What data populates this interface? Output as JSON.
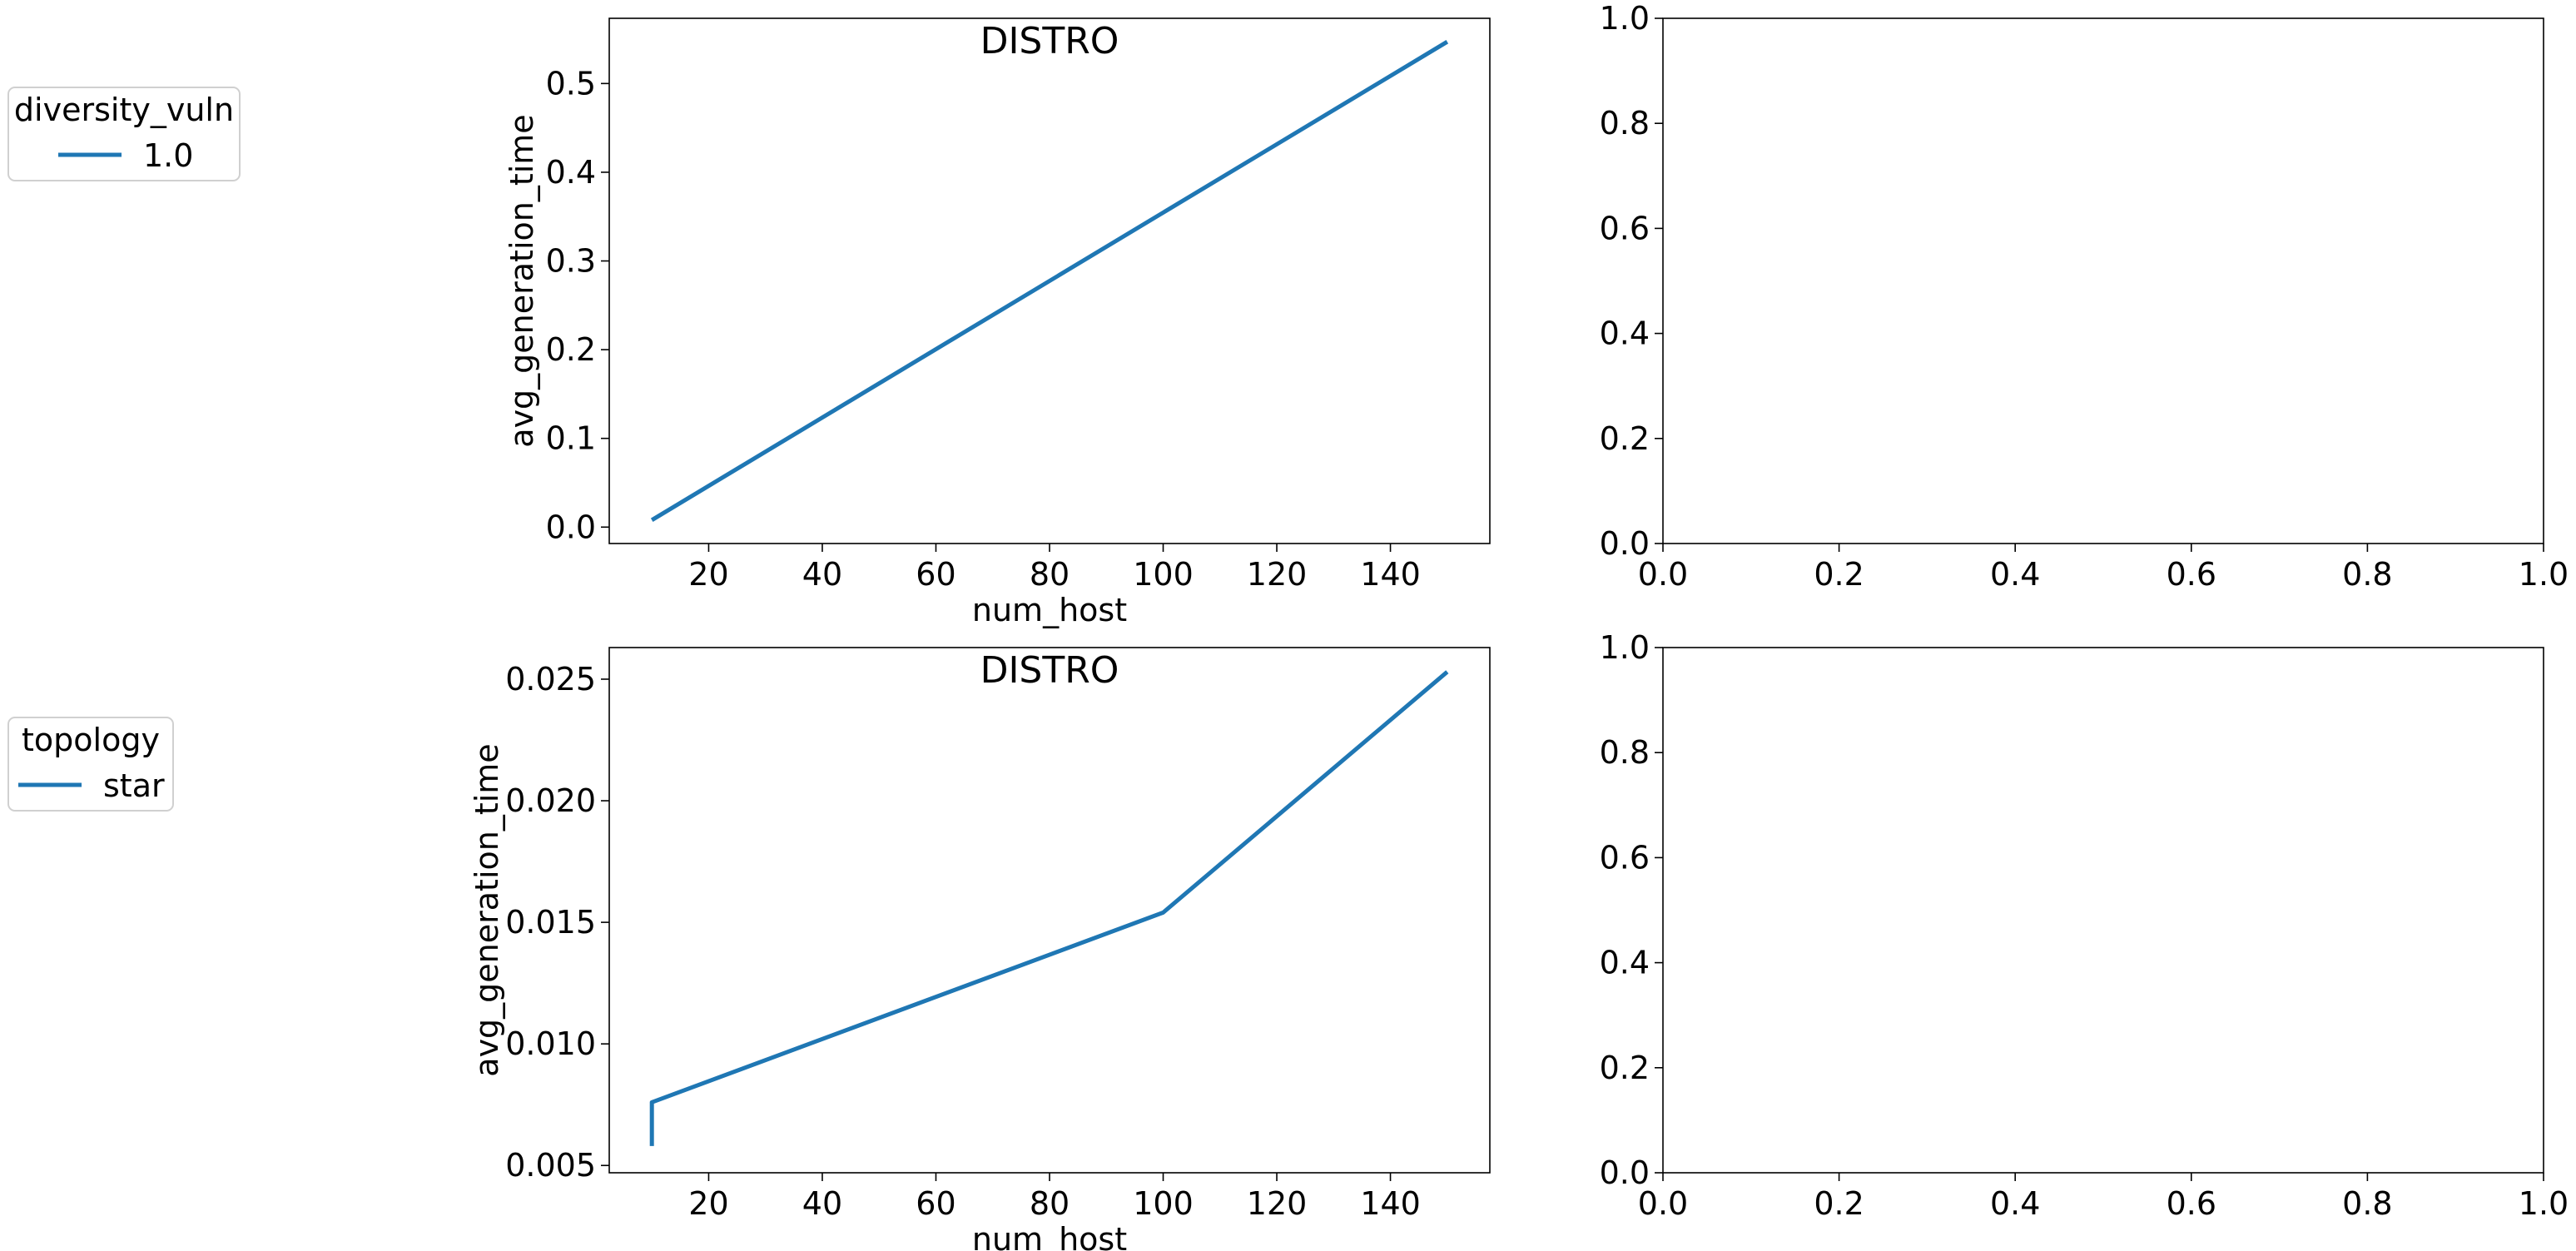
{
  "colors": {
    "series": "#1f77b4",
    "axis": "#000000",
    "legend_border": "#d0d0d0"
  },
  "legends": [
    {
      "title": "diversity_vuln",
      "entries": [
        "1.0"
      ]
    },
    {
      "title": "topology",
      "entries": [
        "star"
      ]
    }
  ],
  "chart_data": [
    {
      "type": "line",
      "title": "DISTRO",
      "xlabel": "num_host",
      "ylabel": "avg_generation_time",
      "xlim": [
        2.5,
        157.5
      ],
      "ylim": [
        -0.0185,
        0.5735
      ],
      "xticks": [
        20,
        40,
        60,
        80,
        100,
        120,
        140
      ],
      "xtick_labels": [
        "20",
        "40",
        "60",
        "80",
        "100",
        "120",
        "140"
      ],
      "yticks": [
        0.0,
        0.1,
        0.2,
        0.3,
        0.4,
        0.5
      ],
      "ytick_labels": [
        "0.0",
        "0.1",
        "0.2",
        "0.3",
        "0.4",
        "0.5"
      ],
      "series": [
        {
          "name": "1.0",
          "x": [
            10,
            150
          ],
          "y": [
            0.008,
            0.547
          ]
        }
      ]
    },
    {
      "type": "line",
      "title": "",
      "xlabel": "",
      "ylabel": "",
      "xlim": [
        0,
        1
      ],
      "ylim": [
        0,
        1
      ],
      "xticks": [
        0.0,
        0.2,
        0.4,
        0.6,
        0.8,
        1.0
      ],
      "xtick_labels": [
        "0.0",
        "0.2",
        "0.4",
        "0.6",
        "0.8",
        "1.0"
      ],
      "yticks": [
        0.0,
        0.2,
        0.4,
        0.6,
        0.8,
        1.0
      ],
      "ytick_labels": [
        "0.0",
        "0.2",
        "0.4",
        "0.6",
        "0.8",
        "1.0"
      ],
      "series": []
    },
    {
      "type": "line",
      "title": "DISTRO",
      "xlabel": "num_host",
      "ylabel": "avg_generation_time",
      "xlim": [
        2.5,
        157.5
      ],
      "ylim": [
        0.0047,
        0.0263
      ],
      "xticks": [
        20,
        40,
        60,
        80,
        100,
        120,
        140
      ],
      "xtick_labels": [
        "20",
        "40",
        "60",
        "80",
        "100",
        "120",
        "140"
      ],
      "yticks": [
        0.005,
        0.01,
        0.015,
        0.02,
        0.025
      ],
      "ytick_labels": [
        "0.005",
        "0.010",
        "0.015",
        "0.020",
        "0.025"
      ],
      "series": [
        {
          "name": "star",
          "x": [
            10,
            10,
            100,
            150
          ],
          "y": [
            0.0058,
            0.0076,
            0.0154,
            0.0253
          ]
        }
      ]
    },
    {
      "type": "line",
      "title": "",
      "xlabel": "",
      "ylabel": "",
      "xlim": [
        0,
        1
      ],
      "ylim": [
        0,
        1
      ],
      "xticks": [
        0.0,
        0.2,
        0.4,
        0.6,
        0.8,
        1.0
      ],
      "xtick_labels": [
        "0.0",
        "0.2",
        "0.4",
        "0.6",
        "0.8",
        "1.0"
      ],
      "yticks": [
        0.0,
        0.2,
        0.4,
        0.6,
        0.8,
        1.0
      ],
      "ytick_labels": [
        "0.0",
        "0.2",
        "0.4",
        "0.6",
        "0.8",
        "1.0"
      ],
      "series": []
    }
  ]
}
